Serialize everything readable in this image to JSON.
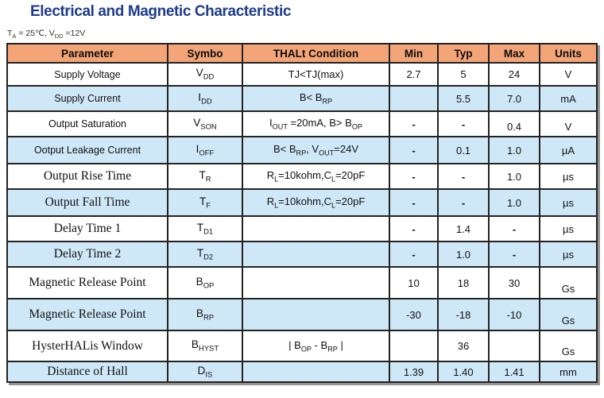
{
  "page": {
    "title": "Electrical and Magnetic Characteristic",
    "conditions": "T~A~ = 25℃, V~DD~ =12V"
  },
  "colors": {
    "title": "#1e3c8c",
    "header_bg": "#f3a577",
    "row_alt_bg": "#cfe8f7",
    "grid_border": "#232323"
  },
  "table": {
    "headers": [
      "Parameter",
      "Symbo",
      "THALt Condition",
      "Min",
      "Typ",
      "Max",
      "Units"
    ],
    "rows": [
      {
        "param": "Supply Voltage",
        "serif": false,
        "symbol": "V~DD~",
        "condition": "TJ<TJ(max)",
        "min": "2.7",
        "typ": "5",
        "max": "24",
        "units": "V"
      },
      {
        "param": "Supply Current",
        "serif": false,
        "symbol": "I~DD~",
        "condition": "B< B~RP~",
        "min": "",
        "typ": "5.5",
        "max": "7.0",
        "units": "mA"
      },
      {
        "param": "Output Saturation",
        "serif": false,
        "symbol": "V~SON~",
        "condition": "I~OUT~ =20mA, B> B~OP~",
        "min": "-",
        "typ": "-",
        "max": "0.4",
        "units": "V"
      },
      {
        "param": "Ootput Leakage Current",
        "serif": false,
        "symbol": "I~OFF~",
        "condition": "B< B~RP~, V~OUT~=24V",
        "min": "-",
        "typ": "0.1",
        "max": "1.0",
        "units": "µA"
      },
      {
        "param": "Output Rise Time",
        "serif": true,
        "symbol": "T~R~",
        "condition": "R~L~=10kohm,C~L~=20pF",
        "min": "-",
        "typ": "-",
        "max": "1.0",
        "units": "µs"
      },
      {
        "param": "Output Fall Time",
        "serif": true,
        "symbol": "T~F~",
        "condition": "R~L~=10kohm,C~L~=20pF",
        "min": "-",
        "typ": "-",
        "max": "1.0",
        "units": "µs"
      },
      {
        "param": "Delay Time 1",
        "serif": true,
        "symbol": "T~D1~",
        "condition": "",
        "min": "-",
        "typ": "1.4",
        "max": "-",
        "units": "µs"
      },
      {
        "param": "Delay Time 2",
        "serif": true,
        "symbol": "T~D2~",
        "condition": "",
        "min": "-",
        "typ": "1.0",
        "max": "-",
        "units": "µs"
      },
      {
        "param": "Magnetic Release Point",
        "serif": true,
        "symbol": "B~OP~",
        "condition": "",
        "min": "10",
        "typ": "18",
        "max": "30",
        "units": "Gs"
      },
      {
        "param": "Magnetic Release Point",
        "serif": true,
        "symbol": "B~RP~",
        "condition": "",
        "min": "-30",
        "typ": "-18",
        "max": "-10",
        "units": "Gs"
      },
      {
        "param": "HysterHALis Window",
        "serif": true,
        "symbol": "B~HYST~",
        "condition": "| B~OP~ - B~RP~ |",
        "min": "",
        "typ": "36",
        "max": "",
        "units": "Gs"
      },
      {
        "param": "Distance of Hall",
        "serif": true,
        "symbol": "D~IS~",
        "condition": "",
        "min": "1.39",
        "typ": "1.40",
        "max": "1.41",
        "units": "mm"
      }
    ]
  }
}
